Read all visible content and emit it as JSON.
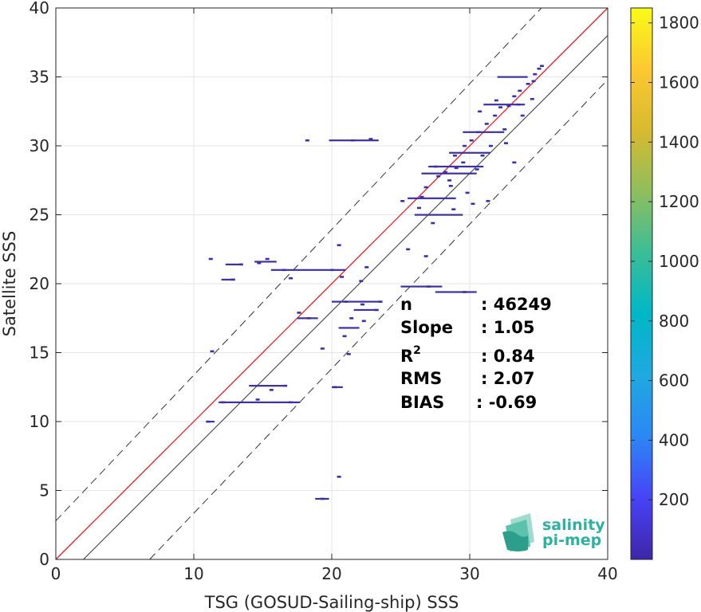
{
  "chart_data": {
    "type": "scatter",
    "title": "",
    "xlabel": "TSG (GOSUD-Sailing-ship) SSS",
    "ylabel": "Satellite SSS",
    "xlim": [
      0,
      40
    ],
    "ylim": [
      0,
      40
    ],
    "x_ticks": [
      "0",
      "10",
      "20",
      "30",
      "40"
    ],
    "y_ticks": [
      "0",
      "5",
      "10",
      "15",
      "20",
      "25",
      "30",
      "35",
      "40"
    ],
    "grid": true,
    "density_color": "#3a2fb0",
    "reference_lines": [
      {
        "kind": "identity",
        "style": "solid",
        "color": "#333333",
        "points": [
          [
            2,
            0
          ],
          [
            40,
            38
          ]
        ]
      },
      {
        "kind": "upper-bound",
        "style": "dashed",
        "color": "#333333",
        "points": [
          [
            0,
            2.8
          ],
          [
            35.2,
            40
          ]
        ]
      },
      {
        "kind": "lower-bound",
        "style": "dashed",
        "color": "#333333",
        "points": [
          [
            6.8,
            0
          ],
          [
            40,
            34.8
          ]
        ]
      },
      {
        "kind": "regression",
        "style": "solid",
        "color": "#e8191b",
        "points": [
          [
            0,
            0
          ],
          [
            40,
            40
          ]
        ]
      }
    ],
    "points": [
      [
        34.7,
        35.2
      ],
      [
        35.0,
        35.6
      ],
      [
        34.6,
        34.7
      ],
      [
        35.2,
        35.8
      ],
      [
        34.2,
        34.5
      ],
      [
        33.6,
        34.0
      ],
      [
        33.2,
        33.6
      ],
      [
        33.5,
        33.0
      ],
      [
        32.8,
        32.9
      ],
      [
        32.2,
        32.8
      ],
      [
        31.8,
        32.2
      ],
      [
        31.2,
        31.6
      ],
      [
        30.6,
        31.0
      ],
      [
        30.1,
        30.4
      ],
      [
        29.6,
        30.0
      ],
      [
        28.9,
        29.3
      ],
      [
        31.5,
        30.0
      ],
      [
        32.5,
        31.2
      ],
      [
        30.5,
        28.3
      ],
      [
        29.5,
        28.8
      ],
      [
        29.0,
        28.4
      ],
      [
        28.2,
        28.1
      ],
      [
        27.7,
        27.8
      ],
      [
        28.5,
        27.5
      ],
      [
        27.5,
        28.5
      ],
      [
        26.8,
        27.0
      ],
      [
        29.8,
        26.6
      ],
      [
        30.2,
        25.8
      ],
      [
        31.3,
        26.0
      ],
      [
        26.3,
        25.5
      ],
      [
        27.3,
        24.4
      ],
      [
        28.8,
        25.4
      ],
      [
        25.1,
        26.0
      ],
      [
        26.5,
        26.3
      ],
      [
        32.6,
        30.2
      ],
      [
        33.2,
        28.8
      ],
      [
        30.9,
        29.3
      ],
      [
        28.6,
        27.1
      ],
      [
        33.8,
        32.2
      ],
      [
        34.5,
        33.4
      ],
      [
        30.7,
        32.5
      ],
      [
        31.9,
        33.3
      ],
      [
        22.8,
        30.5
      ],
      [
        21.5,
        30.4
      ],
      [
        18.2,
        30.4
      ],
      [
        20.5,
        22.8
      ],
      [
        22.5,
        21.2
      ],
      [
        22.1,
        20.2
      ],
      [
        25.5,
        22.5
      ],
      [
        26.8,
        22.0
      ],
      [
        27.0,
        19.8
      ],
      [
        29.6,
        19.4
      ],
      [
        23.5,
        18.7
      ],
      [
        21.0,
        18.7
      ],
      [
        22.2,
        18.5
      ],
      [
        23.2,
        18.1
      ],
      [
        21.4,
        17.5
      ],
      [
        22.3,
        17.3
      ],
      [
        20.9,
        16.2
      ],
      [
        21.2,
        14.9
      ],
      [
        19.3,
        15.3
      ],
      [
        18.3,
        17.5
      ],
      [
        17.6,
        17.9
      ],
      [
        13.4,
        21.4
      ],
      [
        12.8,
        20.3
      ],
      [
        14.7,
        21.5
      ],
      [
        15.3,
        21.8
      ],
      [
        11.2,
        21.8
      ],
      [
        16.5,
        21.0
      ],
      [
        20.0,
        21.0
      ],
      [
        20.7,
        20.5
      ],
      [
        17.0,
        20.4
      ],
      [
        11.3,
        15.1
      ],
      [
        16.6,
        12.6
      ],
      [
        15.6,
        12.3
      ],
      [
        14.6,
        11.6
      ],
      [
        12.1,
        11.4
      ],
      [
        17.0,
        11.4
      ],
      [
        11.0,
        10.0
      ],
      [
        20.2,
        12.5
      ],
      [
        20.5,
        6.0
      ],
      [
        19.3,
        4.4
      ]
    ],
    "runs": [
      {
        "x0": 32.0,
        "x1": 34.2,
        "y": 35.0
      },
      {
        "x0": 31.0,
        "x1": 34.0,
        "y": 33.0
      },
      {
        "x0": 29.5,
        "x1": 32.5,
        "y": 31.0
      },
      {
        "x0": 28.5,
        "x1": 31.5,
        "y": 29.5
      },
      {
        "x0": 27.0,
        "x1": 31.0,
        "y": 28.5
      },
      {
        "x0": 26.5,
        "x1": 30.5,
        "y": 28.0
      },
      {
        "x0": 25.5,
        "x1": 29.0,
        "y": 26.2
      },
      {
        "x0": 26.0,
        "x1": 29.5,
        "y": 25.0
      },
      {
        "x0": 19.8,
        "x1": 23.4,
        "y": 30.4
      },
      {
        "x0": 12.3,
        "x1": 13.5,
        "y": 21.4
      },
      {
        "x0": 14.4,
        "x1": 16.0,
        "y": 21.6
      },
      {
        "x0": 15.6,
        "x1": 21.0,
        "y": 21.0
      },
      {
        "x0": 12.0,
        "x1": 13.0,
        "y": 20.3
      },
      {
        "x0": 25.0,
        "x1": 28.0,
        "y": 19.8
      },
      {
        "x0": 27.5,
        "x1": 30.5,
        "y": 19.4
      },
      {
        "x0": 20.0,
        "x1": 23.6,
        "y": 18.7
      },
      {
        "x0": 21.6,
        "x1": 23.4,
        "y": 18.1
      },
      {
        "x0": 17.5,
        "x1": 19.0,
        "y": 17.5
      },
      {
        "x0": 20.5,
        "x1": 22.0,
        "y": 16.8
      },
      {
        "x0": 14.0,
        "x1": 16.5,
        "y": 12.6
      },
      {
        "x0": 11.8,
        "x1": 17.7,
        "y": 11.4
      },
      {
        "x0": 11.0,
        "x1": 11.5,
        "y": 10.0
      },
      {
        "x0": 20.0,
        "x1": 20.8,
        "y": 12.5
      },
      {
        "x0": 18.8,
        "x1": 19.8,
        "y": 4.4
      }
    ],
    "colorbar": {
      "min": 0,
      "max": 1850,
      "ticks": [
        "200",
        "400",
        "600",
        "800",
        "1000",
        "1200",
        "1400",
        "1600",
        "1800"
      ],
      "colormap": [
        "#3e26a8",
        "#4743f8",
        "#2c87f5",
        "#1fa9e1",
        "#00b7c7",
        "#3abd97",
        "#8ebe5d",
        "#d8ba2f",
        "#fcc831",
        "#f9fb15"
      ]
    },
    "stats": [
      {
        "label": "n",
        "value": ": 46249"
      },
      {
        "label": "Slope",
        "value": ": 1.05"
      },
      {
        "label": "R",
        "sup": "2",
        "value": ": 0.84"
      },
      {
        "label": "RMS",
        "value": ": 2.07"
      },
      {
        "label": "BIAS",
        "value": ": -0.69"
      }
    ]
  },
  "logo": {
    "line1": "salinity",
    "line2": "pi-mep",
    "text_color": "#2bb3a0",
    "wave_colors": [
      "#9fdccf",
      "#5cc2ad",
      "#2e9e8c"
    ]
  }
}
